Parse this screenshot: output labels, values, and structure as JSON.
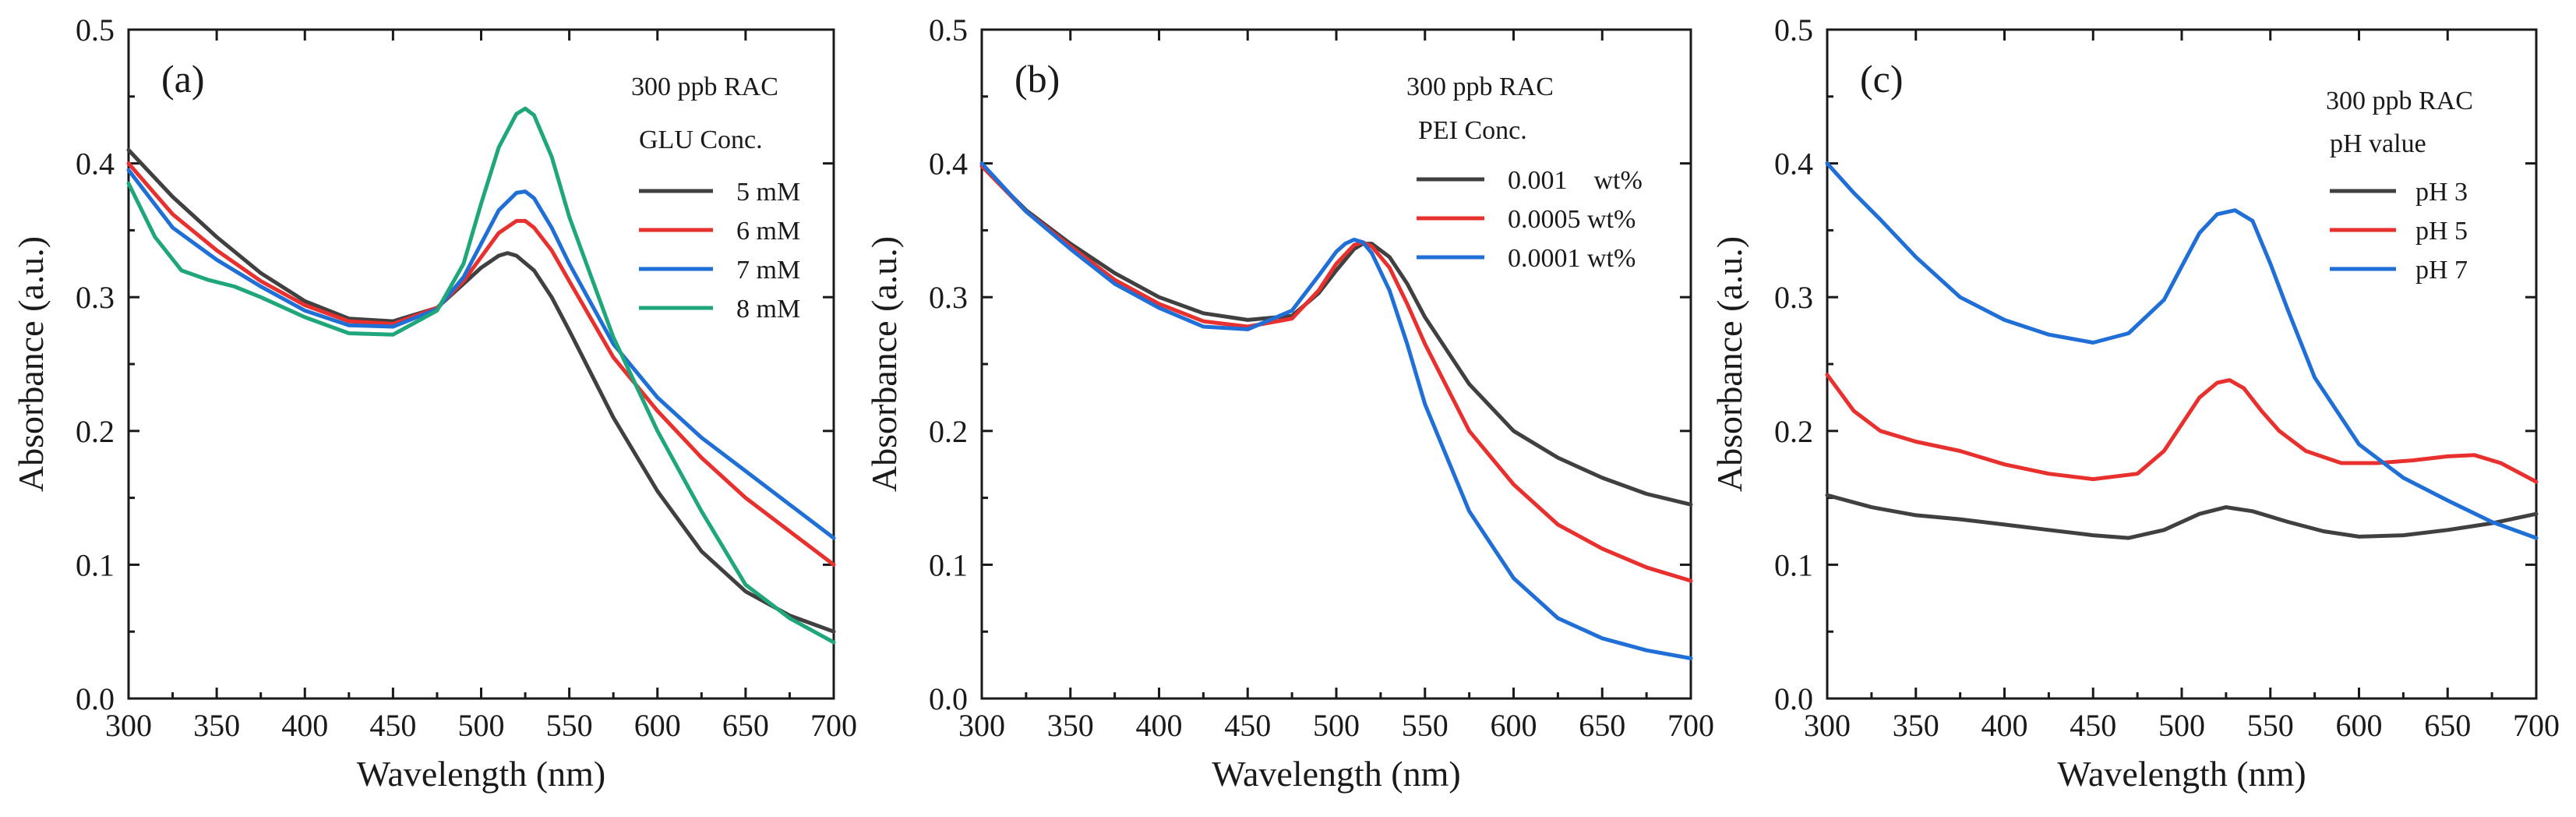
{
  "chart_data": [
    {
      "type": "line",
      "panel_label": "(a)",
      "xlabel": "Wavelength (nm)",
      "ylabel": "Absorbance (a.u.)",
      "xlim": [
        300,
        700
      ],
      "ylim": [
        0.0,
        0.5
      ],
      "xticks": [
        "300",
        "350",
        "400",
        "450",
        "500",
        "550",
        "600",
        "650",
        "700"
      ],
      "yticks": [
        "0.0",
        "0.1",
        "0.2",
        "0.3",
        "0.4",
        "0.5"
      ],
      "grid": false,
      "legend_placement": "top-right",
      "legend_title_lines": [
        "300 ppb RAC",
        "GLU Conc."
      ],
      "series": [
        {
          "name": "5 mM",
          "color": "#404040",
          "x": [
            300,
            325,
            350,
            375,
            400,
            425,
            450,
            475,
            490,
            500,
            510,
            515,
            520,
            530,
            540,
            550,
            575,
            600,
            625,
            650,
            675,
            700
          ],
          "y": [
            0.41,
            0.375,
            0.345,
            0.318,
            0.297,
            0.284,
            0.282,
            0.292,
            0.31,
            0.322,
            0.331,
            0.333,
            0.331,
            0.32,
            0.3,
            0.275,
            0.21,
            0.155,
            0.11,
            0.08,
            0.062,
            0.05
          ]
        },
        {
          "name": "6 mM",
          "color": "#e8302e",
          "x": [
            300,
            325,
            350,
            375,
            400,
            425,
            450,
            475,
            490,
            500,
            510,
            520,
            525,
            530,
            540,
            550,
            575,
            600,
            625,
            650,
            675,
            700
          ],
          "y": [
            0.4,
            0.362,
            0.335,
            0.312,
            0.294,
            0.282,
            0.28,
            0.292,
            0.312,
            0.33,
            0.348,
            0.357,
            0.357,
            0.352,
            0.335,
            0.312,
            0.255,
            0.215,
            0.18,
            0.15,
            0.125,
            0.1
          ]
        },
        {
          "name": "7 mM",
          "color": "#1f6fd6",
          "x": [
            300,
            325,
            350,
            375,
            400,
            425,
            450,
            475,
            490,
            500,
            510,
            520,
            525,
            530,
            540,
            550,
            575,
            600,
            625,
            650,
            675,
            700
          ],
          "y": [
            0.395,
            0.352,
            0.328,
            0.308,
            0.29,
            0.279,
            0.278,
            0.291,
            0.315,
            0.34,
            0.365,
            0.378,
            0.379,
            0.374,
            0.352,
            0.325,
            0.265,
            0.225,
            0.195,
            0.17,
            0.145,
            0.12
          ]
        },
        {
          "name": "8 mM",
          "color": "#1fa67a",
          "x": [
            300,
            315,
            330,
            345,
            360,
            375,
            400,
            425,
            450,
            475,
            490,
            500,
            510,
            520,
            525,
            530,
            540,
            550,
            575,
            600,
            625,
            650,
            675,
            700
          ],
          "y": [
            0.385,
            0.345,
            0.32,
            0.313,
            0.308,
            0.3,
            0.285,
            0.273,
            0.272,
            0.29,
            0.325,
            0.37,
            0.412,
            0.437,
            0.441,
            0.436,
            0.405,
            0.36,
            0.27,
            0.2,
            0.14,
            0.085,
            0.06,
            0.042
          ]
        }
      ]
    },
    {
      "type": "line",
      "panel_label": "(b)",
      "xlabel": "Wavelength (nm)",
      "ylabel": "Absorbance (a.u.)",
      "xlim": [
        300,
        700
      ],
      "ylim": [
        0.0,
        0.5
      ],
      "xticks": [
        "300",
        "350",
        "400",
        "450",
        "500",
        "550",
        "600",
        "650",
        "700"
      ],
      "yticks": [
        "0.0",
        "0.1",
        "0.2",
        "0.3",
        "0.4",
        "0.5"
      ],
      "grid": false,
      "legend_placement": "top-right",
      "legend_title_lines": [
        "300 ppb RAC",
        "PEI Conc."
      ],
      "series": [
        {
          "name": "0.001    wt%",
          "color": "#404040",
          "x": [
            300,
            325,
            350,
            375,
            400,
            425,
            450,
            475,
            490,
            500,
            510,
            515,
            520,
            530,
            540,
            550,
            575,
            600,
            625,
            650,
            675,
            700
          ],
          "y": [
            0.398,
            0.365,
            0.34,
            0.318,
            0.3,
            0.288,
            0.283,
            0.286,
            0.303,
            0.32,
            0.336,
            0.34,
            0.34,
            0.33,
            0.31,
            0.285,
            0.235,
            0.2,
            0.18,
            0.165,
            0.153,
            0.145
          ]
        },
        {
          "name": "0.0005 wt%",
          "color": "#e8302e",
          "x": [
            300,
            325,
            350,
            375,
            400,
            425,
            450,
            475,
            490,
            500,
            510,
            515,
            520,
            530,
            540,
            550,
            575,
            600,
            625,
            650,
            675,
            700
          ],
          "y": [
            0.398,
            0.364,
            0.338,
            0.313,
            0.295,
            0.282,
            0.278,
            0.284,
            0.305,
            0.325,
            0.339,
            0.341,
            0.338,
            0.322,
            0.295,
            0.265,
            0.2,
            0.16,
            0.13,
            0.112,
            0.098,
            0.088
          ]
        },
        {
          "name": "0.0001 wt%",
          "color": "#1f6fd6",
          "x": [
            300,
            325,
            350,
            375,
            400,
            425,
            450,
            475,
            490,
            500,
            505,
            510,
            515,
            520,
            530,
            540,
            550,
            575,
            600,
            625,
            650,
            675,
            700
          ],
          "y": [
            0.4,
            0.364,
            0.336,
            0.31,
            0.292,
            0.278,
            0.276,
            0.29,
            0.316,
            0.334,
            0.34,
            0.343,
            0.341,
            0.333,
            0.305,
            0.265,
            0.22,
            0.14,
            0.09,
            0.06,
            0.045,
            0.036,
            0.03
          ]
        }
      ]
    },
    {
      "type": "line",
      "panel_label": "(c)",
      "xlabel": "Wavelength (nm)",
      "ylabel": "Absorbance (a.u.)",
      "xlim": [
        300,
        700
      ],
      "ylim": [
        0.0,
        0.5
      ],
      "xticks": [
        "300",
        "350",
        "400",
        "450",
        "500",
        "550",
        "600",
        "650",
        "700"
      ],
      "yticks": [
        "0.0",
        "0.1",
        "0.2",
        "0.3",
        "0.4",
        "0.5"
      ],
      "grid": false,
      "legend_placement": "top-right",
      "legend_title_lines": [
        "300 ppb RAC",
        "pH value"
      ],
      "series": [
        {
          "name": "pH 3",
          "color": "#404040",
          "x": [
            300,
            325,
            350,
            375,
            400,
            425,
            450,
            470,
            490,
            510,
            525,
            540,
            560,
            580,
            600,
            625,
            650,
            675,
            700
          ],
          "y": [
            0.152,
            0.143,
            0.137,
            0.134,
            0.13,
            0.126,
            0.122,
            0.12,
            0.126,
            0.138,
            0.143,
            0.14,
            0.132,
            0.125,
            0.121,
            0.122,
            0.126,
            0.131,
            0.138
          ]
        },
        {
          "name": "pH 5",
          "color": "#e8302e",
          "x": [
            300,
            315,
            330,
            350,
            375,
            400,
            425,
            450,
            475,
            490,
            500,
            510,
            520,
            527,
            535,
            545,
            555,
            570,
            590,
            610,
            630,
            650,
            665,
            680,
            700
          ],
          "y": [
            0.242,
            0.215,
            0.2,
            0.192,
            0.185,
            0.175,
            0.168,
            0.164,
            0.168,
            0.185,
            0.205,
            0.225,
            0.236,
            0.238,
            0.232,
            0.215,
            0.2,
            0.185,
            0.176,
            0.176,
            0.178,
            0.181,
            0.182,
            0.176,
            0.162
          ]
        },
        {
          "name": "pH 7",
          "color": "#1f6fd6",
          "x": [
            300,
            315,
            330,
            350,
            375,
            400,
            425,
            450,
            470,
            490,
            500,
            510,
            520,
            530,
            540,
            550,
            560,
            575,
            600,
            625,
            650,
            675,
            700
          ],
          "y": [
            0.4,
            0.378,
            0.358,
            0.33,
            0.3,
            0.283,
            0.272,
            0.266,
            0.273,
            0.298,
            0.323,
            0.348,
            0.362,
            0.365,
            0.357,
            0.325,
            0.29,
            0.24,
            0.19,
            0.165,
            0.148,
            0.132,
            0.12
          ]
        }
      ]
    }
  ]
}
